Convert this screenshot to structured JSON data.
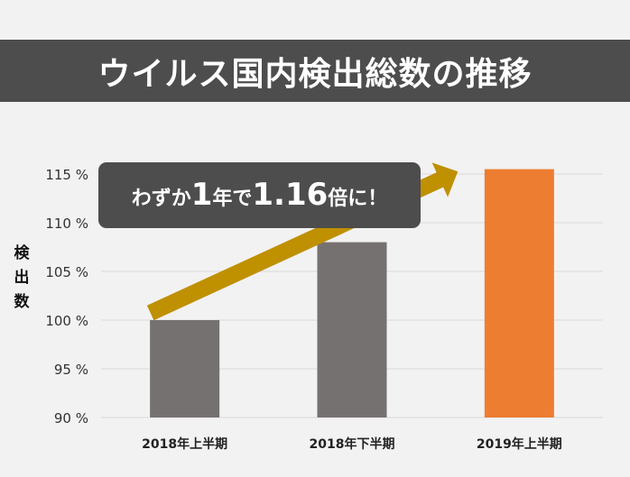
{
  "title": "ウイルス国内検出総数の推移",
  "callout": {
    "part1": "わずか",
    "num1": "1",
    "part2": "年で",
    "num2": "1.16",
    "part3": "倍に！"
  },
  "colors": {
    "title_bg": "#4d4d4d",
    "bar_gray": "#767171",
    "bar_highlight": "#ed7d31",
    "arrow": "#bf9000",
    "grid": "#d9d9d9"
  },
  "chart_data": {
    "type": "bar",
    "categories": [
      "2018年上半期",
      "2018年下半期",
      "2019年上半期"
    ],
    "values": [
      100,
      108,
      116
    ],
    "ylabel": "検出数",
    "ylim": [
      90,
      115
    ],
    "yticks": [
      90,
      95,
      100,
      105,
      110,
      115
    ],
    "ytick_suffix": " %",
    "grid": true,
    "highlight_index": 2
  }
}
